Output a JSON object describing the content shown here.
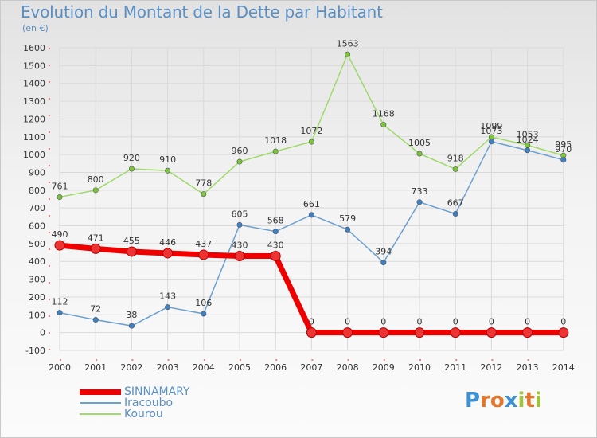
{
  "title": "Evolution du Montant de la Dette par Habitant",
  "subtitle": "(en €)",
  "logo_text": "Proxiti",
  "colors": {
    "title": "#5a8fc4",
    "grid": "#d9d9d9",
    "axis_text": "#333333",
    "logo_letters": [
      "#3d8fd6",
      "#e4752c",
      "#e4752c",
      "#3d8fd6",
      "#9fc43b",
      "#e4752c",
      "#9fc43b"
    ]
  },
  "chart_data": {
    "type": "line",
    "x": [
      "2000",
      "2001",
      "2002",
      "2003",
      "2004",
      "2005",
      "2006",
      "2007",
      "2008",
      "2009",
      "2010",
      "2011",
      "2012",
      "2013",
      "2014"
    ],
    "ylim": [
      -100,
      1600
    ],
    "yticks": [
      -100,
      0,
      100,
      200,
      300,
      400,
      500,
      600,
      700,
      800,
      900,
      1000,
      1100,
      1200,
      1300,
      1400,
      1500,
      1600
    ],
    "grid": true,
    "legend_position": "bottom-left",
    "series": [
      {
        "name": "SINNAMARY",
        "color": "#ee0000",
        "marker_color": "#ee3333",
        "values": [
          490,
          471,
          455,
          446,
          437,
          430,
          430,
          0,
          0,
          0,
          0,
          0,
          0,
          0,
          0
        ]
      },
      {
        "name": "Iracoubo",
        "color": "#6a9fd0",
        "marker_color": "#3f7fc3",
        "values": [
          112,
          72,
          38,
          143,
          106,
          605,
          568,
          661,
          579,
          394,
          733,
          667,
          1073,
          1024,
          970
        ]
      },
      {
        "name": "Kourou",
        "color": "#9ed96a",
        "marker_color": "#7cc63a",
        "values": [
          761,
          800,
          920,
          910,
          778,
          960,
          1018,
          1072,
          1563,
          1168,
          1005,
          918,
          1099,
          1053,
          995
        ]
      }
    ]
  }
}
